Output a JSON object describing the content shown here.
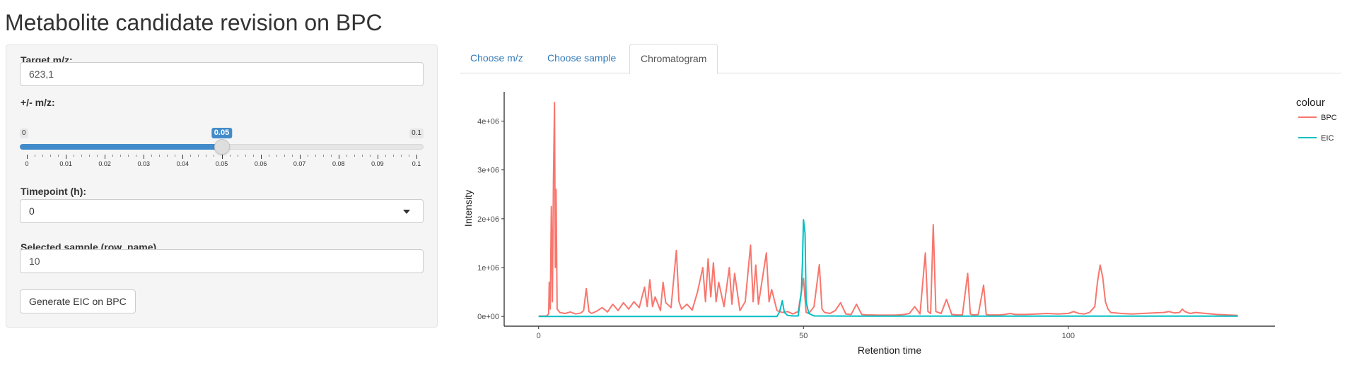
{
  "page": {
    "title": "Metabolite candidate revision on BPC"
  },
  "sidebar": {
    "target_mz": {
      "label": "Target m/z:",
      "value": "623,1"
    },
    "mz_tolerance": {
      "label": "+/- m/z:",
      "min_label": "0",
      "max_label": "0.1",
      "value_label": "0.05",
      "fraction": 0.5,
      "ticks": [
        "0",
        "0.01",
        "0.02",
        "0.03",
        "0.04",
        "0.05",
        "0.06",
        "0.07",
        "0.08",
        "0.09",
        "0.1"
      ]
    },
    "timepoint": {
      "label": "Timepoint (h):",
      "value": "0"
    },
    "selected_sample": {
      "label": "Selected sample (row_name)",
      "value": "10"
    },
    "generate_button": {
      "label": "Generate EIC on BPC"
    }
  },
  "tabs": [
    {
      "label": "Choose m/z",
      "active": false
    },
    {
      "label": "Choose sample",
      "active": false
    },
    {
      "label": "Chromatogram",
      "active": true
    }
  ],
  "chart_data": {
    "type": "line",
    "xlabel": "Retention time",
    "ylabel": "Intensity",
    "x_ticks": [
      0,
      50,
      100
    ],
    "x_tick_labels": [
      "0",
      "50",
      "100"
    ],
    "y_ticks": [
      0,
      1000000,
      2000000,
      3000000,
      4000000
    ],
    "y_tick_labels": [
      "0e+00",
      "1e+06",
      "2e+06",
      "3e+06",
      "4e+06"
    ],
    "xlim": [
      -6.5,
      139
    ],
    "ylim": [
      -200000,
      4600000
    ],
    "grid": false,
    "legend": {
      "title": "colour",
      "position": "right"
    },
    "series": [
      {
        "name": "BPC",
        "color": "#F8766D",
        "points": [
          [
            0,
            5000
          ],
          [
            1.5,
            10000
          ],
          [
            1.9,
            50000
          ],
          [
            2.0,
            700000
          ],
          [
            2.2,
            150000
          ],
          [
            2.4,
            2250000
          ],
          [
            2.6,
            300000
          ],
          [
            2.8,
            2800000
          ],
          [
            3.0,
            4380000
          ],
          [
            3.15,
            1000000
          ],
          [
            3.3,
            2600000
          ],
          [
            3.5,
            150000
          ],
          [
            4,
            80000
          ],
          [
            5,
            60000
          ],
          [
            6,
            90000
          ],
          [
            7,
            50000
          ],
          [
            8,
            70000
          ],
          [
            8.5,
            120000
          ],
          [
            9,
            570000
          ],
          [
            9.5,
            100000
          ],
          [
            10,
            60000
          ],
          [
            11,
            110000
          ],
          [
            12,
            180000
          ],
          [
            13,
            90000
          ],
          [
            14,
            250000
          ],
          [
            15,
            120000
          ],
          [
            16,
            280000
          ],
          [
            17,
            150000
          ],
          [
            18,
            300000
          ],
          [
            19,
            180000
          ],
          [
            20,
            600000
          ],
          [
            20.5,
            200000
          ],
          [
            21,
            750000
          ],
          [
            21.5,
            200000
          ],
          [
            22,
            400000
          ],
          [
            23,
            120000
          ],
          [
            23.5,
            700000
          ],
          [
            24,
            280000
          ],
          [
            25,
            180000
          ],
          [
            26,
            1350000
          ],
          [
            26.5,
            300000
          ],
          [
            27,
            150000
          ],
          [
            28,
            250000
          ],
          [
            29,
            130000
          ],
          [
            30,
            500000
          ],
          [
            31,
            1000000
          ],
          [
            31.5,
            300000
          ],
          [
            32,
            1180000
          ],
          [
            32.5,
            400000
          ],
          [
            33,
            1100000
          ],
          [
            33.5,
            300000
          ],
          [
            34,
            700000
          ],
          [
            35,
            200000
          ],
          [
            36,
            1000000
          ],
          [
            36.5,
            250000
          ],
          [
            37,
            880000
          ],
          [
            38,
            120000
          ],
          [
            39,
            300000
          ],
          [
            40,
            1460000
          ],
          [
            40.5,
            300000
          ],
          [
            41,
            1050000
          ],
          [
            41.5,
            250000
          ],
          [
            42,
            600000
          ],
          [
            43,
            1300000
          ],
          [
            43.5,
            300000
          ],
          [
            44,
            550000
          ],
          [
            45,
            120000
          ],
          [
            46,
            80000
          ],
          [
            47,
            100000
          ],
          [
            48,
            50000
          ],
          [
            49,
            100000
          ],
          [
            50,
            780000
          ],
          [
            50.5,
            80000
          ],
          [
            51,
            60000
          ],
          [
            52,
            200000
          ],
          [
            53,
            1060000
          ],
          [
            53.5,
            150000
          ],
          [
            54,
            80000
          ],
          [
            55,
            60000
          ],
          [
            56,
            120000
          ],
          [
            57,
            280000
          ],
          [
            58,
            50000
          ],
          [
            59,
            40000
          ],
          [
            60,
            250000
          ],
          [
            61,
            40000
          ],
          [
            62,
            30000
          ],
          [
            63,
            30000
          ],
          [
            64,
            25000
          ],
          [
            65,
            25000
          ],
          [
            66,
            25000
          ],
          [
            67,
            25000
          ],
          [
            68,
            30000
          ],
          [
            69,
            40000
          ],
          [
            70,
            60000
          ],
          [
            71,
            200000
          ],
          [
            72,
            50000
          ],
          [
            73,
            1300000
          ],
          [
            73.5,
            100000
          ],
          [
            74,
            60000
          ],
          [
            74.5,
            1880000
          ],
          [
            75,
            100000
          ],
          [
            76,
            60000
          ],
          [
            77,
            350000
          ],
          [
            78,
            40000
          ],
          [
            79,
            30000
          ],
          [
            80,
            30000
          ],
          [
            81,
            880000
          ],
          [
            81.5,
            50000
          ],
          [
            82,
            30000
          ],
          [
            83,
            40000
          ],
          [
            84,
            640000
          ],
          [
            84.5,
            40000
          ],
          [
            85,
            30000
          ],
          [
            86,
            30000
          ],
          [
            87,
            30000
          ],
          [
            88,
            40000
          ],
          [
            89,
            60000
          ],
          [
            90,
            40000
          ],
          [
            92,
            40000
          ],
          [
            94,
            50000
          ],
          [
            96,
            60000
          ],
          [
            98,
            50000
          ],
          [
            100,
            60000
          ],
          [
            101,
            100000
          ],
          [
            102,
            60000
          ],
          [
            103,
            50000
          ],
          [
            104,
            80000
          ],
          [
            105,
            200000
          ],
          [
            105.5,
            700000
          ],
          [
            106,
            1050000
          ],
          [
            106.5,
            800000
          ],
          [
            107,
            300000
          ],
          [
            107.5,
            150000
          ],
          [
            108,
            80000
          ],
          [
            110,
            60000
          ],
          [
            112,
            50000
          ],
          [
            114,
            60000
          ],
          [
            116,
            70000
          ],
          [
            118,
            80000
          ],
          [
            119,
            100000
          ],
          [
            120,
            70000
          ],
          [
            121,
            80000
          ],
          [
            121.5,
            150000
          ],
          [
            122,
            100000
          ],
          [
            123,
            60000
          ],
          [
            124,
            80000
          ],
          [
            126,
            60000
          ],
          [
            128,
            40000
          ],
          [
            130,
            30000
          ],
          [
            132,
            20000
          ]
        ]
      },
      {
        "name": "EIC",
        "color": "#00BFC4",
        "points": [
          [
            0,
            0
          ],
          [
            45,
            0
          ],
          [
            45.5,
            100000
          ],
          [
            46,
            320000
          ],
          [
            46.4,
            80000
          ],
          [
            47,
            20000
          ],
          [
            48,
            10000
          ],
          [
            49,
            10000
          ],
          [
            49.6,
            500000
          ],
          [
            49.8,
            1100000
          ],
          [
            50,
            1980000
          ],
          [
            50.3,
            1700000
          ],
          [
            50.5,
            300000
          ],
          [
            51,
            60000
          ],
          [
            52,
            10000
          ],
          [
            60,
            5000
          ],
          [
            80,
            5000
          ],
          [
            100,
            5000
          ],
          [
            120,
            5000
          ],
          [
            132,
            5000
          ]
        ]
      }
    ]
  }
}
